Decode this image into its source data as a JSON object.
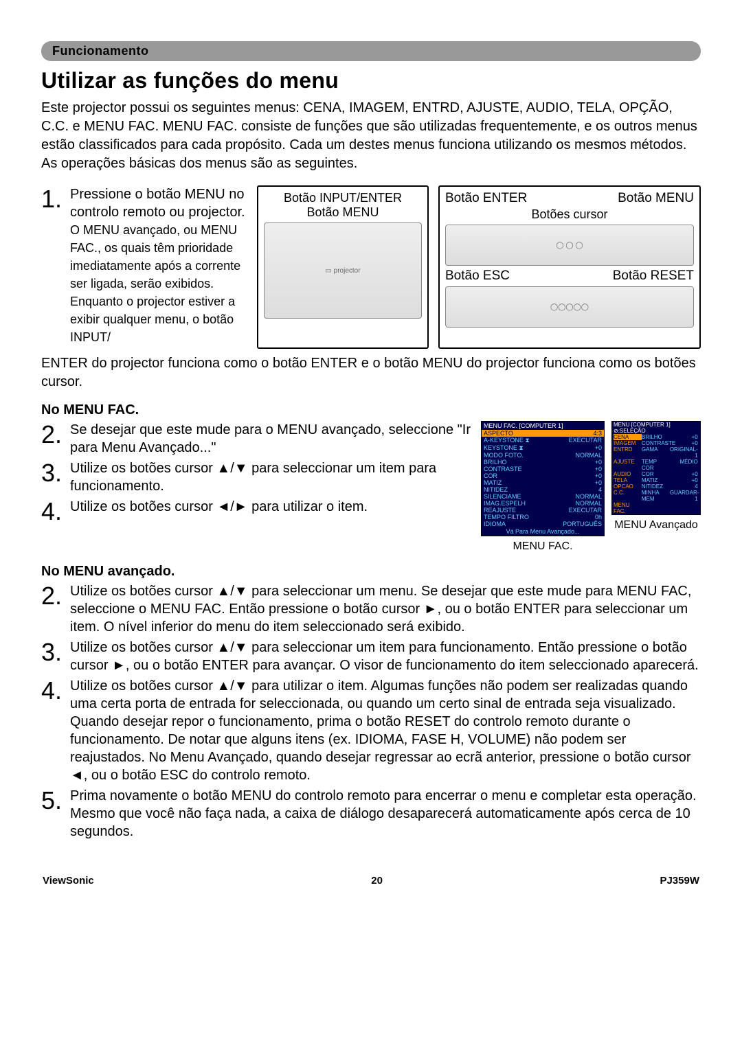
{
  "section_label": "Funcionamento",
  "title": "Utilizar as funções do menu",
  "intro": "Este projector possui os seguintes menus: CENA, IMAGEM, ENTRD, AJUSTE, AUDIO, TELA, OPÇÃO, C.C. e MENU FAC. MENU FAC. consiste de funções que são utilizadas frequentemente, e os outros menus estão classificados para cada propósito. Cada um destes menus funciona utilizando os mesmos métodos. As operações básicas dos menus são as seguintes.",
  "step1a": "Pressione o botão MENU no controlo remoto ou projector.",
  "step1b": "O MENU avançado, ou MENU FAC., os quais têm prioridade imediatamente após a corrente ser ligada, serão exibidos. Enquanto o projector estiver a exibir qualquer menu, o botão INPUT/",
  "step1c": "ENTER do projector funciona como o botão ENTER e o botão MENU do projector funciona como os botões cursor.",
  "diag_mid_line1": "Botão INPUT/ENTER",
  "diag_mid_line2": "Botão MENU",
  "diag_r_enter": "Botão ENTER",
  "diag_r_menu": "Botão MENU",
  "diag_r_cursor": "Botões cursor",
  "diag_r_esc": "Botão ESC",
  "diag_r_reset": "Botão RESET",
  "subhead_fac": "No MENU FAC.",
  "fac2": "Se desejar que este mude para o MENU avançado, seleccione \"Ir para Menu Avançado...\"",
  "fac3": "Utilize os botões cursor ▲/▼ para seleccionar um item para funcionamento.",
  "fac4": "Utilize os botões cursor ◄/► para utilizar o item.",
  "subhead_adv": "No MENU avançado.",
  "adv2": "Utilize os botões cursor ▲/▼ para seleccionar um menu. Se desejar que este mude para MENU FAC, seleccione o MENU FAC. Então pressione o botão cursor ►, ou o botão ENTER para seleccionar um item. O nível inferior do menu do item seleccionado será exibido.",
  "adv3": "Utilize os botões cursor ▲/▼ para seleccionar um item para funcionamento. Então pressione o botão cursor ►, ou o botão ENTER para avançar. O visor de funcionamento do item seleccionado aparecerá.",
  "adv4": "Utilize os botões cursor ▲/▼ para utilizar o item. Algumas funções não podem ser realizadas quando uma certa porta de entrada for seleccionada, ou quando um certo sinal de entrada seja visualizado. Quando desejar repor o funcionamento, prima o botão RESET do controlo remoto durante o funcionamento. De notar que alguns itens (ex. IDIOMA, FASE H, VOLUME) não podem ser reajustados. No Menu Avançado, quando desejar regressar ao ecrã anterior, pressione o botão cursor ◄, ou o botão ESC do controlo remoto.",
  "adv5": "Prima novamente o botão MENU do controlo remoto para encerrar o menu e completar esta operação. Mesmo que você não faça nada, a caixa de diálogo desaparecerá automaticamente após cerca de 10 segundos.",
  "menu_fac_screen": {
    "header": "MENU FAC. [COMPUTER 1]",
    "rows": [
      {
        "l": "ASPECTO",
        "r": "4:3",
        "hl": true
      },
      {
        "l": "A-KEYSTONE ⧗",
        "r": "EXECUTAR"
      },
      {
        "l": "KEYSTONE ⧗",
        "r": "+0"
      },
      {
        "l": "MODO FOTO.",
        "r": "NORMAL"
      },
      {
        "l": "BRILHO",
        "r": "+0"
      },
      {
        "l": "CONTRASTE",
        "r": "+0"
      },
      {
        "l": "COR",
        "r": "+0"
      },
      {
        "l": "MATIZ",
        "r": "+0"
      },
      {
        "l": "NITIDEZ",
        "r": "4"
      },
      {
        "l": "SILENCIAME",
        "r": "NORMAL"
      },
      {
        "l": "IMAG.ESPELH",
        "r": "NORMAL"
      },
      {
        "l": "REAJUSTE",
        "r": "EXECUTAR"
      },
      {
        "l": "TEMPO FILTRO",
        "r": "0h"
      },
      {
        "l": "IDIOMA",
        "r": "PORTUGUÊS"
      }
    ],
    "footer": "Vá Para Menu Avançado..."
  },
  "menu_adv_screen": {
    "header": "MENU [COMPUTER 1]      ⊘:SELEÇÃO",
    "rows": [
      {
        "a": "CENA",
        "b": "BRILHO",
        "c": "+0"
      },
      {
        "a": "IMAGEM",
        "b": "CONTRASTE",
        "c": "+0"
      },
      {
        "a": "ENTRD",
        "b": "GAMA",
        "c": "ORIGINAL-1"
      },
      {
        "a": "AJUSTE",
        "b": "TEMP COR",
        "c": "MÉDIO"
      },
      {
        "a": "AUDIO",
        "b": "COR",
        "c": "+0"
      },
      {
        "a": "TELA",
        "b": "MATIZ",
        "c": "+0"
      },
      {
        "a": "OPCAO",
        "b": "NITIDEZ",
        "c": "4"
      },
      {
        "a": "C.C.",
        "b": "MINHA MEM",
        "c": "GUARDAR-1"
      },
      {
        "a": "MENU FAC.",
        "b": "",
        "c": ""
      }
    ]
  },
  "caption_fac": "MENU FAC.",
  "caption_adv": "MENU Avançado",
  "footer_left": "ViewSonic",
  "footer_center": "20",
  "footer_right": "PJ359W",
  "colors": {
    "tab_bg": "#999999",
    "menu_bg": "#00004d",
    "menu_text": "#66ccff",
    "highlight": "#ff9900"
  }
}
